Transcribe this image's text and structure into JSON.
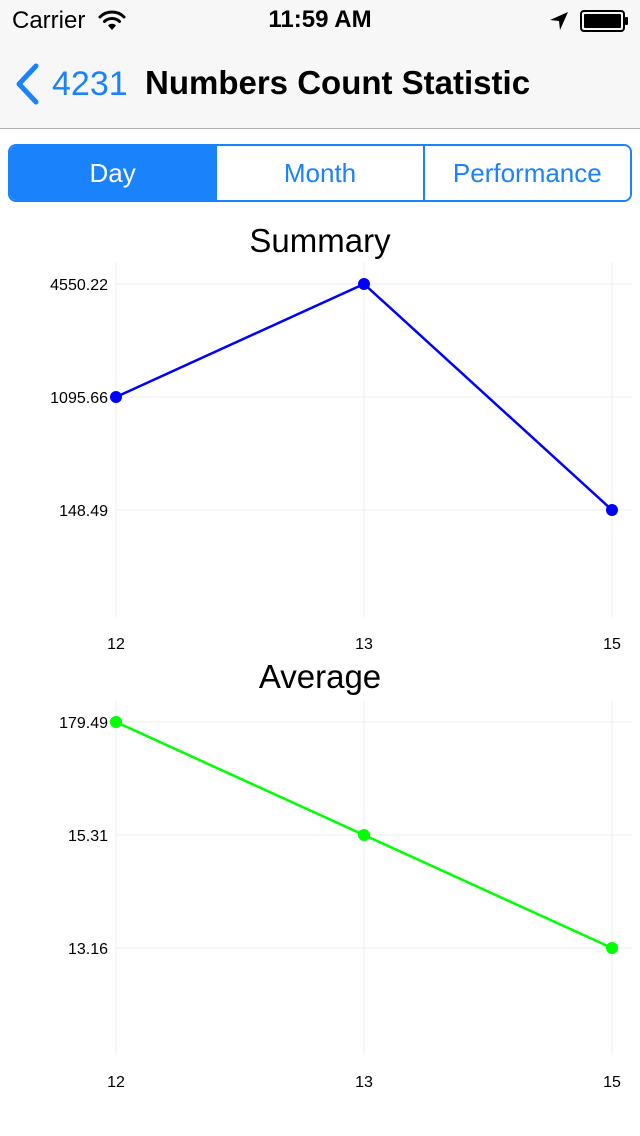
{
  "status_bar": {
    "carrier": "Carrier",
    "time": "11:59 AM",
    "icons": [
      "wifi-icon",
      "location-arrow-icon",
      "battery-icon"
    ]
  },
  "nav": {
    "back_label": "4231",
    "title": "Numbers Count Statistic",
    "accent_color": "#1a82fb"
  },
  "segments": {
    "items": [
      {
        "label": "Day",
        "selected": true
      },
      {
        "label": "Month",
        "selected": false
      },
      {
        "label": "Performance",
        "selected": false
      }
    ]
  },
  "chart_data": [
    {
      "type": "line",
      "title": "Summary",
      "x": [
        "12",
        "13",
        "15"
      ],
      "y_ticks": [
        "4550.22",
        "1095.66",
        "148.49"
      ],
      "series": [
        {
          "values": [
            1095.66,
            4550.22,
            148.49
          ],
          "color": "#0000ff"
        }
      ],
      "grid": true
    },
    {
      "type": "line",
      "title": "Average",
      "x": [
        "12",
        "13",
        "15"
      ],
      "y_ticks": [
        "179.49",
        "15.31",
        "13.16"
      ],
      "series": [
        {
          "values": [
            179.49,
            15.31,
            13.16
          ],
          "color": "#00ff00"
        }
      ],
      "grid": true
    }
  ]
}
